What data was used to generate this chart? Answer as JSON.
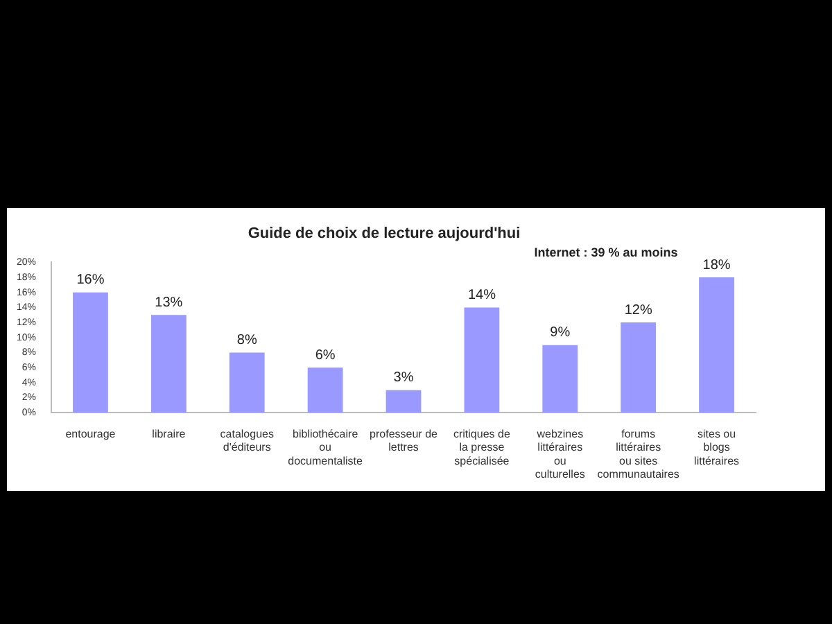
{
  "chart_data": {
    "type": "bar",
    "title": "Guide de choix de lecture aujourd'hui",
    "categories": [
      "entourage",
      "libraire",
      "catalogues d'éditeurs",
      "bibliothécaire ou documentaliste",
      "professeur de lettres",
      "critiques de la presse spécialisée",
      "webzines littéraires ou culturelles",
      "forums littéraires ou sites communautaires",
      "sites ou blogs littéraires"
    ],
    "values": [
      16,
      13,
      8,
      6,
      3,
      14,
      9,
      12,
      18
    ],
    "color": "#9999ff",
    "value_labels": [
      "16%",
      "13%",
      "8%",
      "6%",
      "3%",
      "14%",
      "9%",
      "12%",
      "18%"
    ],
    "ylim": [
      0,
      20
    ],
    "yticks": [
      {
        "value": 0,
        "label": "0%"
      },
      {
        "value": 2,
        "label": "2%"
      },
      {
        "value": 4,
        "label": "4%"
      },
      {
        "value": 6,
        "label": "6%"
      },
      {
        "value": 8,
        "label": "8%"
      },
      {
        "value": 10,
        "label": "10%"
      },
      {
        "value": 12,
        "label": "12%"
      },
      {
        "value": 14,
        "label": "14%"
      },
      {
        "value": 16,
        "label": "16%"
      },
      {
        "value": 18,
        "label": "18%"
      },
      {
        "value": 20,
        "label": "20%"
      }
    ],
    "annotations": [
      "Internet : 39 % au moins"
    ],
    "grid": false,
    "legend": false
  }
}
